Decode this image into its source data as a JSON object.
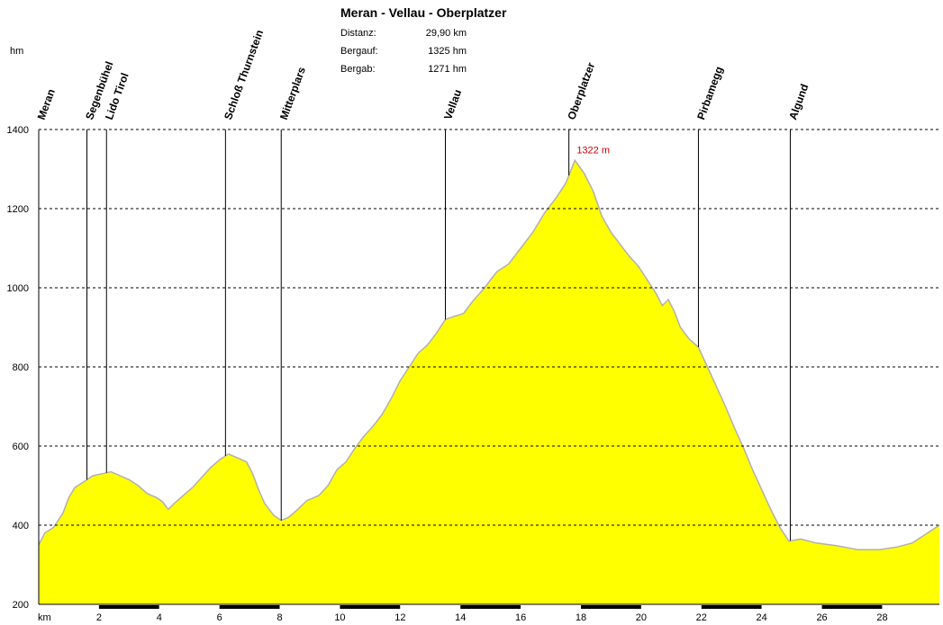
{
  "chart_data": {
    "type": "area",
    "title": "Meran - Vellau - Oberplatzer",
    "ylabel": "hm",
    "xlabel": "km",
    "ylim": [
      200,
      1400
    ],
    "xlim": [
      0,
      29.9
    ],
    "y_ticks": [
      "200",
      "400",
      "600",
      "800",
      "1000",
      "1200",
      "1400"
    ],
    "x_ticks": [
      "2",
      "4",
      "6",
      "8",
      "10",
      "12",
      "14",
      "16",
      "18",
      "20",
      "22",
      "24",
      "26",
      "28"
    ],
    "grid": true,
    "fill_color": "#ffff00",
    "line_color": "#b0b0b0",
    "stats": [
      {
        "label": "Distanz:",
        "value": "29,90 km"
      },
      {
        "label": "Bergauf:",
        "value": "1325 hm"
      },
      {
        "label": "Bergab:",
        "value": "1271 hm"
      }
    ],
    "peak_label": "1322 m",
    "peak_color": "#cc0000",
    "peak": {
      "x": 17.8,
      "y": 1322
    },
    "waypoints": [
      {
        "name": "Meran",
        "x": 0.0
      },
      {
        "name": "Segenbühel",
        "x": 1.6
      },
      {
        "name": "Lido Tirol",
        "x": 2.25
      },
      {
        "name": "Schloß Thurnstein",
        "x": 6.2
      },
      {
        "name": "Mitterplars",
        "x": 8.05
      },
      {
        "name": "Vellau",
        "x": 13.5
      },
      {
        "name": "Oberplatzer",
        "x": 17.6
      },
      {
        "name": "Pirbamegg",
        "x": 21.9
      },
      {
        "name": "Algund",
        "x": 24.95
      }
    ],
    "profile": [
      [
        0,
        350
      ],
      [
        0.2,
        380
      ],
      [
        0.5,
        395
      ],
      [
        0.8,
        430
      ],
      [
        1.0,
        470
      ],
      [
        1.2,
        495
      ],
      [
        1.5,
        510
      ],
      [
        1.8,
        525
      ],
      [
        2.1,
        530
      ],
      [
        2.4,
        535
      ],
      [
        2.7,
        525
      ],
      [
        3.0,
        515
      ],
      [
        3.3,
        500
      ],
      [
        3.6,
        480
      ],
      [
        3.9,
        470
      ],
      [
        4.1,
        460
      ],
      [
        4.3,
        440
      ],
      [
        4.5,
        455
      ],
      [
        4.8,
        475
      ],
      [
        5.1,
        495
      ],
      [
        5.4,
        520
      ],
      [
        5.7,
        545
      ],
      [
        6.0,
        565
      ],
      [
        6.3,
        580
      ],
      [
        6.6,
        570
      ],
      [
        6.9,
        560
      ],
      [
        7.1,
        530
      ],
      [
        7.3,
        490
      ],
      [
        7.5,
        455
      ],
      [
        7.8,
        425
      ],
      [
        8.05,
        412
      ],
      [
        8.3,
        420
      ],
      [
        8.6,
        440
      ],
      [
        8.9,
        462
      ],
      [
        9.3,
        475
      ],
      [
        9.6,
        500
      ],
      [
        9.9,
        540
      ],
      [
        10.2,
        560
      ],
      [
        10.5,
        595
      ],
      [
        10.8,
        625
      ],
      [
        11.1,
        650
      ],
      [
        11.4,
        680
      ],
      [
        11.7,
        720
      ],
      [
        12.0,
        765
      ],
      [
        12.3,
        800
      ],
      [
        12.6,
        835
      ],
      [
        12.9,
        855
      ],
      [
        13.2,
        885
      ],
      [
        13.5,
        920
      ],
      [
        13.8,
        928
      ],
      [
        14.1,
        935
      ],
      [
        14.4,
        965
      ],
      [
        14.8,
        1000
      ],
      [
        15.2,
        1040
      ],
      [
        15.6,
        1060
      ],
      [
        16.0,
        1100
      ],
      [
        16.4,
        1140
      ],
      [
        16.8,
        1190
      ],
      [
        17.2,
        1230
      ],
      [
        17.5,
        1265
      ],
      [
        17.8,
        1322
      ],
      [
        18.1,
        1290
      ],
      [
        18.4,
        1245
      ],
      [
        18.7,
        1180
      ],
      [
        19.0,
        1140
      ],
      [
        19.3,
        1110
      ],
      [
        19.6,
        1080
      ],
      [
        19.9,
        1055
      ],
      [
        20.2,
        1020
      ],
      [
        20.5,
        985
      ],
      [
        20.7,
        955
      ],
      [
        20.9,
        970
      ],
      [
        21.1,
        940
      ],
      [
        21.3,
        900
      ],
      [
        21.6,
        870
      ],
      [
        21.9,
        850
      ],
      [
        22.2,
        800
      ],
      [
        22.5,
        750
      ],
      [
        22.8,
        700
      ],
      [
        23.1,
        645
      ],
      [
        23.4,
        595
      ],
      [
        23.7,
        540
      ],
      [
        24.0,
        490
      ],
      [
        24.3,
        440
      ],
      [
        24.6,
        395
      ],
      [
        24.9,
        360
      ],
      [
        25.3,
        365
      ],
      [
        25.8,
        355
      ],
      [
        26.5,
        348
      ],
      [
        27.2,
        338
      ],
      [
        27.9,
        338
      ],
      [
        28.5,
        345
      ],
      [
        29.0,
        355
      ],
      [
        29.4,
        375
      ],
      [
        29.9,
        400
      ]
    ]
  }
}
